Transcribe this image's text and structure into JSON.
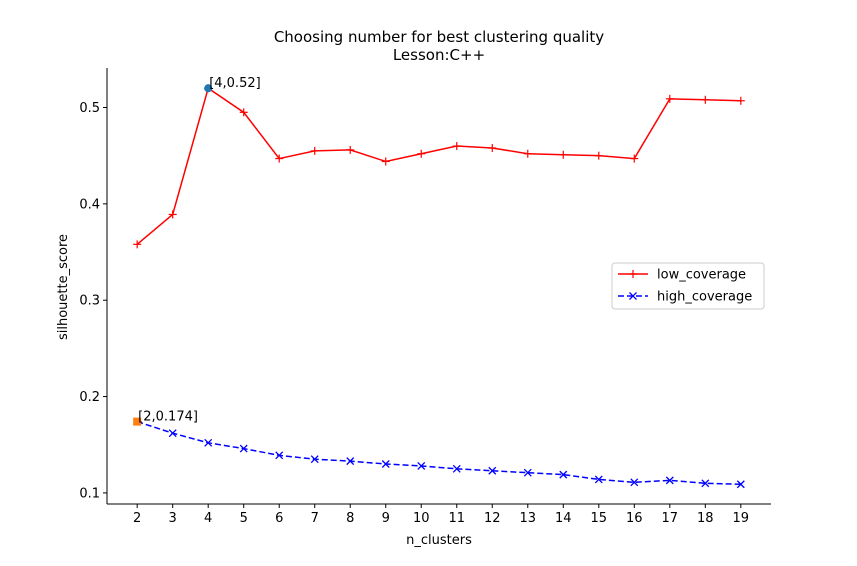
{
  "chart_data": {
    "type": "line",
    "title": "Choosing number for best clustering quality",
    "subtitle": "Lesson:C++",
    "xlabel": "n_clusters",
    "ylabel": "silhouette_score",
    "x": [
      2,
      3,
      4,
      5,
      6,
      7,
      8,
      9,
      10,
      11,
      12,
      13,
      14,
      15,
      16,
      17,
      18,
      19
    ],
    "xlim": [
      1.15,
      19.85
    ],
    "ylim": [
      0.0885,
      0.541
    ],
    "yticks": [
      0.1,
      0.2,
      0.3,
      0.4,
      0.5
    ],
    "ytick_labels": [
      "0.1",
      "0.2",
      "0.3",
      "0.4",
      "0.5"
    ],
    "xtick_labels": [
      "2",
      "3",
      "4",
      "5",
      "6",
      "7",
      "8",
      "9",
      "10",
      "11",
      "12",
      "13",
      "14",
      "15",
      "16",
      "17",
      "18",
      "19"
    ],
    "grid": false,
    "legend_position": "center-right",
    "series": [
      {
        "name": "low_coverage",
        "color": "#ff0000",
        "linestyle": "solid",
        "marker": "plus",
        "values": [
          0.358,
          0.389,
          0.52,
          0.495,
          0.447,
          0.455,
          0.456,
          0.444,
          0.452,
          0.46,
          0.458,
          0.452,
          0.451,
          0.45,
          0.447,
          0.509,
          0.508,
          0.507
        ]
      },
      {
        "name": "high_coverage",
        "color": "#0000ff",
        "linestyle": "dashed",
        "marker": "x",
        "values": [
          0.174,
          0.162,
          0.152,
          0.146,
          0.139,
          0.135,
          0.133,
          0.13,
          0.128,
          0.125,
          0.123,
          0.121,
          0.119,
          0.114,
          0.111,
          0.113,
          0.11,
          0.109
        ]
      }
    ],
    "annotations": [
      {
        "text": "[4,0.52]",
        "x": 4,
        "y": 0.52,
        "marker": "circle",
        "color": "#1f77b4"
      },
      {
        "text": "[2,0.174]",
        "x": 2,
        "y": 0.174,
        "marker": "square",
        "color": "#ff7f0e"
      }
    ]
  }
}
